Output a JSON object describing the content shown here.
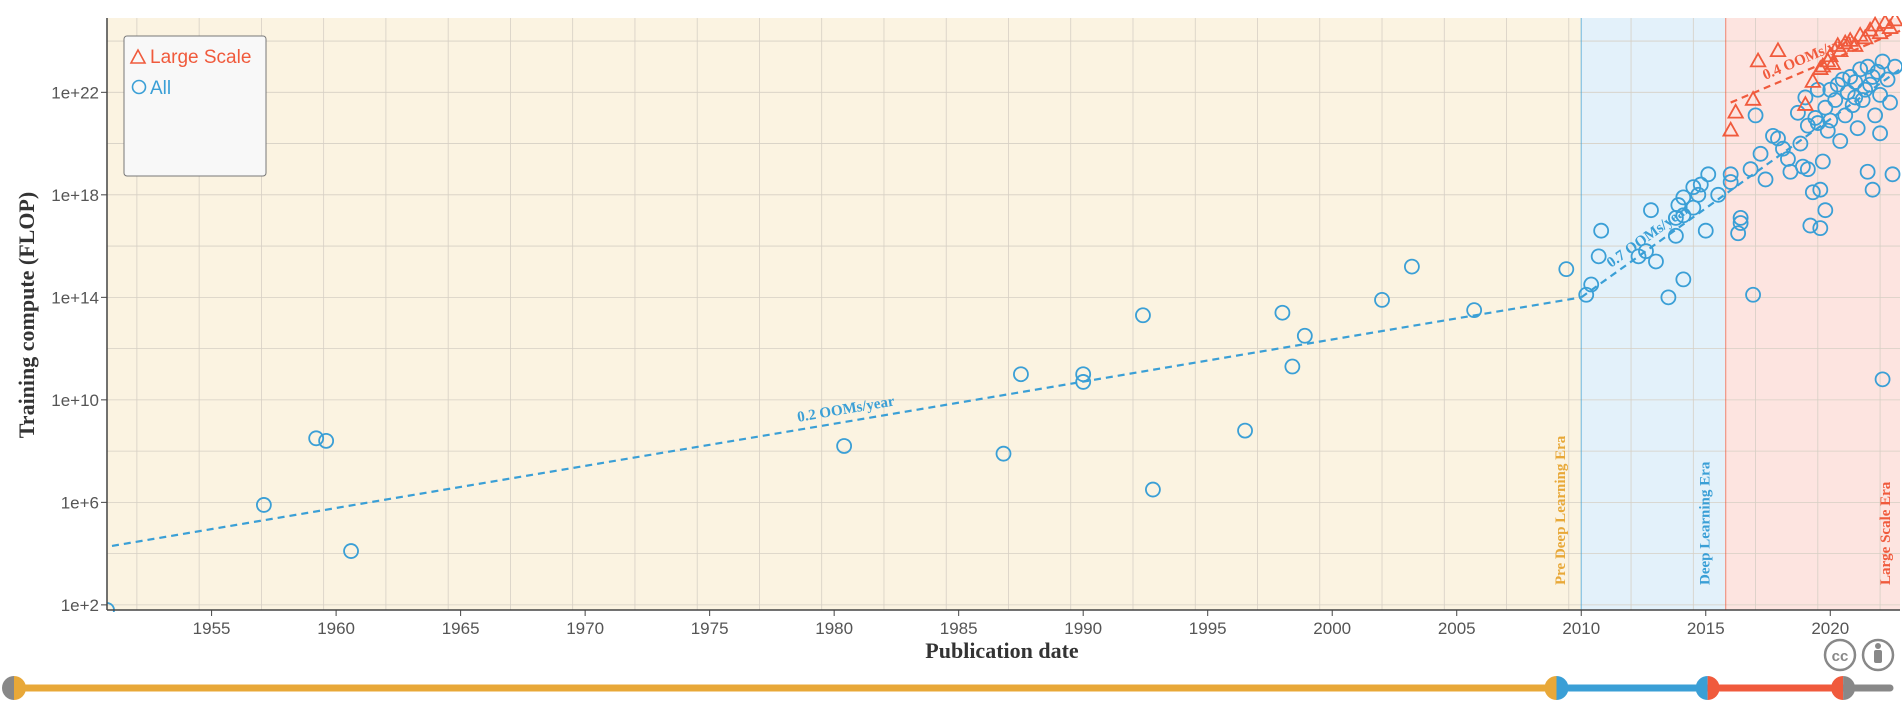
{
  "colors": {
    "pre": "#e8a838",
    "deep": "#3a9fd6",
    "large": "#f05a3c",
    "pre_bg": "#fbf3e1",
    "deep_bg": "#e3f1fa",
    "large_bg": "#fde4e0",
    "grid": "#d6cfc4",
    "gray": "#888888"
  },
  "chart_data": {
    "type": "scatter",
    "xlabel": "Publication date",
    "ylabel": "Training compute (FLOP)",
    "y_scale": "log",
    "xlim": [
      1950.8,
      2022.8
    ],
    "ylim_log10": [
      1.8,
      24.9
    ],
    "x_ticks": [
      {
        "value": 1955,
        "label": "1955"
      },
      {
        "value": 1960,
        "label": "1960"
      },
      {
        "value": 1965,
        "label": "1965"
      },
      {
        "value": 1970,
        "label": "1970"
      },
      {
        "value": 1975,
        "label": "1975"
      },
      {
        "value": 1980,
        "label": "1980"
      },
      {
        "value": 1985,
        "label": "1985"
      },
      {
        "value": 1990,
        "label": "1990"
      },
      {
        "value": 1995,
        "label": "1995"
      },
      {
        "value": 2000,
        "label": "2000"
      },
      {
        "value": 2005,
        "label": "2005"
      },
      {
        "value": 2010,
        "label": "2010"
      },
      {
        "value": 2015,
        "label": "2015"
      },
      {
        "value": 2020,
        "label": "2020"
      }
    ],
    "y_ticks": [
      {
        "exp": 2,
        "label": "1e+2"
      },
      {
        "exp": 6,
        "label": "1e+6"
      },
      {
        "exp": 10,
        "label": "1e+10"
      },
      {
        "exp": 14,
        "label": "1e+14"
      },
      {
        "exp": 18,
        "label": "1e+18"
      },
      {
        "exp": 22,
        "label": "1e+22"
      }
    ],
    "grid": true,
    "legend": {
      "placement": "top-left",
      "entries": [
        {
          "name": "Large Scale",
          "symbol": "triangle",
          "color": "#f05a3c"
        },
        {
          "name": "All",
          "symbol": "circle",
          "color": "#3a9fd6"
        }
      ]
    },
    "eras": [
      {
        "name": "Pre Deep Learning Era",
        "from": 1950.8,
        "to": 2010,
        "color": "#e8a838",
        "bg": "#fbf3e1"
      },
      {
        "name": "Deep Learning Era",
        "from": 2010,
        "to": 2015.8,
        "color": "#3a9fd6",
        "bg": "#e3f1fa"
      },
      {
        "name": "Large Scale Era",
        "from": 2015.8,
        "to": 2022.8,
        "color": "#f05a3c",
        "bg": "#fde4e0"
      }
    ],
    "trends": [
      {
        "label": "0.2 OOMs/year",
        "x": [
          1951,
          2010
        ],
        "y_log10": [
          4.3,
          14.0
        ],
        "color": "#3a9fd6",
        "label_x": 1980.5
      },
      {
        "label": "0.7 OOMs/year",
        "x": [
          2010,
          2022.8
        ],
        "y_log10": [
          14.0,
          22.9
        ],
        "color": "#3a9fd6",
        "label_x": 2012.8
      },
      {
        "label": "0.4 OOMs/year",
        "x": [
          2016,
          2022.8
        ],
        "y_log10": [
          21.6,
          24.4
        ],
        "color": "#f05a3c",
        "label_x": 2019.2
      }
    ],
    "series": [
      {
        "name": "All",
        "symbol": "circle",
        "color": "#3a9fd6",
        "points": [
          [
            1950.8,
            1.8
          ],
          [
            1957.1,
            5.9
          ],
          [
            1959.2,
            8.5
          ],
          [
            1959.6,
            8.4
          ],
          [
            1960.6,
            4.1
          ],
          [
            1980.4,
            8.2
          ],
          [
            1986.8,
            7.9
          ],
          [
            1987.5,
            11.0
          ],
          [
            1990.0,
            11.0
          ],
          [
            1990.0,
            10.7
          ],
          [
            1992.4,
            13.3
          ],
          [
            1992.8,
            6.5
          ],
          [
            1996.5,
            8.8
          ],
          [
            1998.0,
            13.4
          ],
          [
            1998.4,
            11.3
          ],
          [
            1998.9,
            12.5
          ],
          [
            2002.0,
            13.9
          ],
          [
            2003.2,
            15.2
          ],
          [
            2005.7,
            13.5
          ],
          [
            2009.4,
            15.1
          ],
          [
            2010.2,
            14.1
          ],
          [
            2010.4,
            14.5
          ],
          [
            2010.7,
            15.6
          ],
          [
            2010.8,
            16.6
          ],
          [
            2012.3,
            15.6
          ],
          [
            2012.6,
            15.8
          ],
          [
            2012.8,
            17.4
          ],
          [
            2013.0,
            15.4
          ],
          [
            2013.5,
            14.0
          ],
          [
            2013.8,
            16.4
          ],
          [
            2013.8,
            17.1
          ],
          [
            2013.9,
            17.6
          ],
          [
            2014.1,
            17.2
          ],
          [
            2014.1,
            14.7
          ],
          [
            2014.1,
            17.9
          ],
          [
            2014.5,
            17.5
          ],
          [
            2014.5,
            18.3
          ],
          [
            2014.7,
            18.0
          ],
          [
            2014.8,
            18.4
          ],
          [
            2015.0,
            16.6
          ],
          [
            2015.1,
            18.8
          ],
          [
            2015.5,
            18.0
          ],
          [
            2016.0,
            18.5
          ],
          [
            2016.0,
            18.8
          ],
          [
            2016.3,
            16.5
          ],
          [
            2016.4,
            16.9
          ],
          [
            2016.4,
            17.1
          ],
          [
            2016.8,
            19.0
          ],
          [
            2016.9,
            14.1
          ],
          [
            2017.0,
            21.1
          ],
          [
            2017.2,
            19.6
          ],
          [
            2017.4,
            18.6
          ],
          [
            2017.7,
            20.3
          ],
          [
            2017.9,
            20.2
          ],
          [
            2018.1,
            19.8
          ],
          [
            2018.3,
            19.4
          ],
          [
            2018.4,
            18.9
          ],
          [
            2018.7,
            21.2
          ],
          [
            2018.8,
            20.0
          ],
          [
            2018.9,
            19.1
          ],
          [
            2019.0,
            21.8
          ],
          [
            2019.1,
            20.7
          ],
          [
            2019.1,
            19.0
          ],
          [
            2019.2,
            16.8
          ],
          [
            2019.3,
            18.1
          ],
          [
            2019.4,
            21.0
          ],
          [
            2019.5,
            20.8
          ],
          [
            2019.5,
            22.1
          ],
          [
            2019.6,
            16.7
          ],
          [
            2019.6,
            18.2
          ],
          [
            2019.7,
            19.3
          ],
          [
            2019.8,
            21.4
          ],
          [
            2019.8,
            17.4
          ],
          [
            2019.9,
            20.5
          ],
          [
            2020.0,
            22.1
          ],
          [
            2020.0,
            20.9
          ],
          [
            2020.2,
            21.7
          ],
          [
            2020.3,
            22.3
          ],
          [
            2020.4,
            20.1
          ],
          [
            2020.5,
            22.5
          ],
          [
            2020.6,
            21.1
          ],
          [
            2020.7,
            22.0
          ],
          [
            2020.8,
            22.6
          ],
          [
            2020.9,
            21.5
          ],
          [
            2021.0,
            21.8
          ],
          [
            2021.0,
            22.4
          ],
          [
            2021.1,
            20.6
          ],
          [
            2021.2,
            22.9
          ],
          [
            2021.3,
            21.7
          ],
          [
            2021.4,
            22.1
          ],
          [
            2021.5,
            23.0
          ],
          [
            2021.5,
            18.9
          ],
          [
            2021.6,
            22.3
          ],
          [
            2021.7,
            18.2
          ],
          [
            2021.7,
            22.6
          ],
          [
            2021.8,
            21.1
          ],
          [
            2021.9,
            22.8
          ],
          [
            2022.0,
            20.4
          ],
          [
            2022.0,
            21.9
          ],
          [
            2022.1,
            23.2
          ],
          [
            2022.1,
            10.8
          ],
          [
            2022.3,
            22.5
          ],
          [
            2022.4,
            21.6
          ],
          [
            2022.5,
            18.8
          ],
          [
            2022.6,
            23.0
          ]
        ]
      },
      {
        "name": "Large Scale",
        "symbol": "triangle",
        "color": "#f05a3c",
        "points": [
          [
            2016.0,
            20.5
          ],
          [
            2016.2,
            21.2
          ],
          [
            2016.9,
            21.7
          ],
          [
            2017.1,
            23.2
          ],
          [
            2017.9,
            23.6
          ],
          [
            2019.0,
            21.5
          ],
          [
            2019.3,
            22.4
          ],
          [
            2019.6,
            22.9
          ],
          [
            2019.7,
            23.0
          ],
          [
            2019.9,
            23.2
          ],
          [
            2020.0,
            23.4
          ],
          [
            2020.1,
            23.1
          ],
          [
            2020.3,
            23.8
          ],
          [
            2020.4,
            23.6
          ],
          [
            2020.6,
            23.9
          ],
          [
            2020.8,
            24.0
          ],
          [
            2021.0,
            23.8
          ],
          [
            2021.2,
            24.2
          ],
          [
            2021.4,
            24.1
          ],
          [
            2021.6,
            24.4
          ],
          [
            2021.8,
            24.6
          ],
          [
            2022.0,
            24.3
          ],
          [
            2022.2,
            24.7
          ],
          [
            2022.4,
            24.5
          ],
          [
            2022.6,
            24.8
          ]
        ]
      }
    ]
  }
}
